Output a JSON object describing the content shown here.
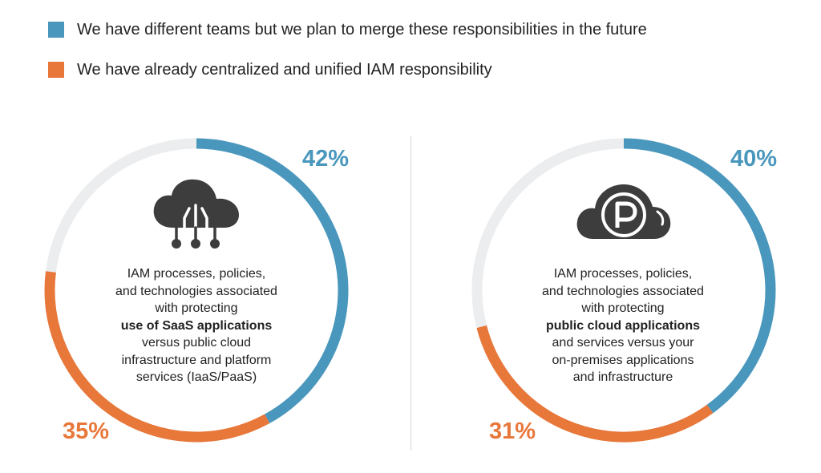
{
  "colors": {
    "blue": "#4a97bd",
    "orange": "#e8773a",
    "track": "#ebedef",
    "icon": "#3d3d3d"
  },
  "legend": [
    {
      "label": "We have different teams but we plan to merge these responsibilities in the future",
      "color": "#4a97bd"
    },
    {
      "label": "We have already centralized and unified IAM responsibility",
      "color": "#e8773a"
    }
  ],
  "chart_data": [
    {
      "type": "donut",
      "series": [
        {
          "name": "We have different teams but we plan to merge these responsibilities in the future",
          "value": 42,
          "label": "42%"
        },
        {
          "name": "We have already centralized and unified IAM responsibility",
          "value": 35,
          "label": "35%"
        }
      ],
      "icon": "cloud-circuit-icon",
      "description": {
        "before": [
          "IAM processes, policies,",
          "and technologies associated",
          "with protecting"
        ],
        "bold": "use of SaaS applications",
        "after": [
          "versus public cloud",
          "infrastructure and platform",
          "services (IaaS/PaaS)"
        ]
      }
    },
    {
      "type": "donut",
      "series": [
        {
          "name": "We have different teams but we plan to merge these responsibilities in the future",
          "value": 40,
          "label": "40%"
        },
        {
          "name": "We have already centralized and unified IAM responsibility",
          "value": 31,
          "label": "31%"
        }
      ],
      "icon": "cloud-p-icon",
      "description": {
        "before": [
          "IAM processes, policies,",
          "and technologies associated",
          "with protecting"
        ],
        "bold": "public cloud applications",
        "after": [
          "and services versus your",
          "on-premises applications",
          "and infrastructure"
        ]
      }
    }
  ]
}
